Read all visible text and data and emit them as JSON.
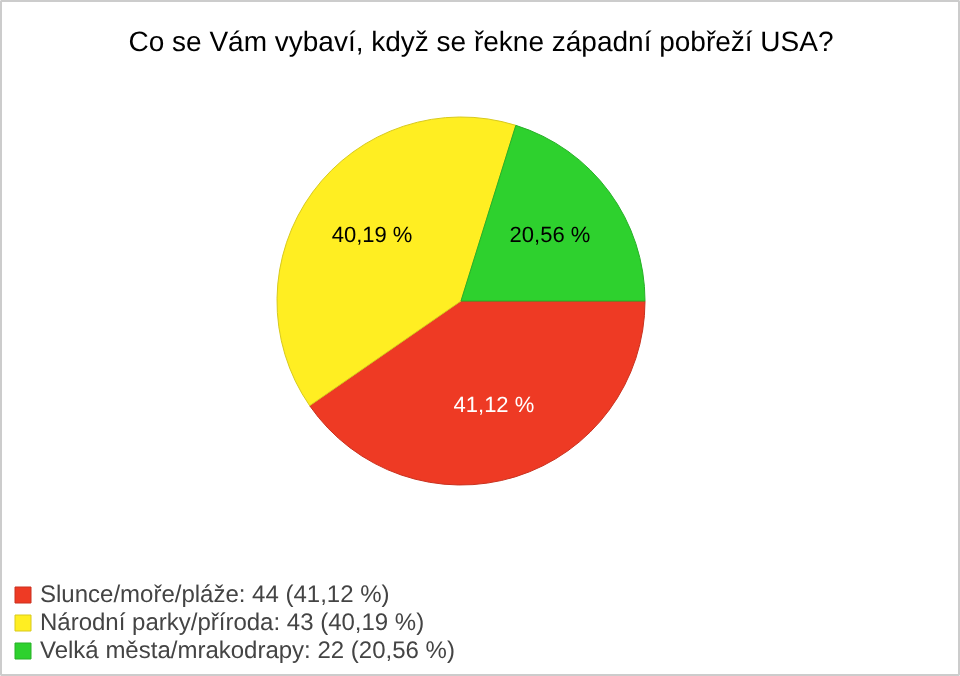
{
  "chart_data": {
    "type": "pie",
    "title": "Co se Vám vybaví, když se řekne západní pobřeží USA?",
    "categories": [
      "Slunce/moře/pláže: 44 (41,12 %)",
      "Národní parky/příroda: 43 (40,19 %)",
      "Velká města/mrakodrapy: 22 (20,56 %)"
    ],
    "values": [
      41.12,
      40.19,
      20.56
    ],
    "value_labels": [
      "41,12 %",
      "40,19 %",
      "20,56 %"
    ],
    "colors": [
      "#ee3a24",
      "#ffee22",
      "#2ed12e"
    ],
    "legend": "bottom left"
  }
}
